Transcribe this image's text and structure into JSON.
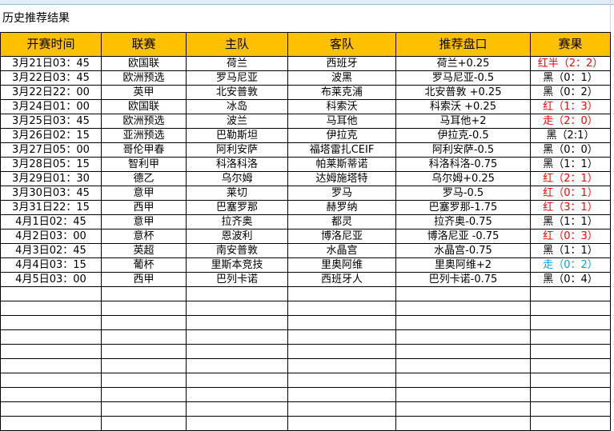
{
  "title": "历史推荐结果",
  "headers": [
    "开赛时间",
    "联赛",
    "主队",
    "客队",
    "推荐盘口",
    "赛果"
  ],
  "colors": {
    "header_bg": "#ffc000",
    "red": "#ff0000",
    "blue": "#00a0e9"
  },
  "rows": [
    {
      "time": "3月21日03：45",
      "league": "欧国联",
      "home": "荷兰",
      "away": "西班牙",
      "pick": "荷兰+0.25",
      "result": "红半（2：2）",
      "color": "red"
    },
    {
      "time": "3月22日03：45",
      "league": "欧洲预选",
      "home": "罗马尼亚",
      "away": "波黑",
      "pick": "罗马尼亚-0.5",
      "result": "黑（0：1）",
      "color": "black"
    },
    {
      "time": "3月22日22：00",
      "league": "英甲",
      "home": "北安普敦",
      "away": "布莱克浦",
      "pick": "北安普敦 +0.25",
      "result": "黑（0：2）",
      "color": "black"
    },
    {
      "time": "3月24日01：00",
      "league": "欧国联",
      "home": "冰岛",
      "away": "科索沃",
      "pick": "科索沃 +0.25",
      "result": "红（1：3）",
      "color": "red"
    },
    {
      "time": "3月25日03：45",
      "league": "欧洲预选",
      "home": "波兰",
      "away": "马耳他",
      "pick": "马耳他+2",
      "result": "走（2：0）",
      "color": "red"
    },
    {
      "time": "3月26日02：15",
      "league": "亚洲预选",
      "home": "巴勒斯坦",
      "away": "伊拉克",
      "pick": "伊拉克-0.5",
      "result": "黑（2:1）",
      "color": "black"
    },
    {
      "time": "3月27日05：00",
      "league": "哥伦甲春",
      "home": "阿利安萨",
      "away": "福塔雷扎CEIF",
      "pick": "阿利安萨-0.5",
      "result": "黑（0：0）",
      "color": "black"
    },
    {
      "time": "3月28日05：15",
      "league": "智利甲",
      "home": "科洛科洛",
      "away": "帕莱斯蒂诺",
      "pick": "科洛科洛-0.75",
      "result": "黑（1：1）",
      "color": "black"
    },
    {
      "time": "3月29日01：30",
      "league": "德乙",
      "home": "乌尔姆",
      "away": "达姆施塔特",
      "pick": "乌尔姆+0.25",
      "result": "红（2：1）",
      "color": "red"
    },
    {
      "time": "3月30日03：45",
      "league": "意甲",
      "home": "莱切",
      "away": "罗马",
      "pick": "罗马-0.5",
      "result": "红（0：1）",
      "color": "red"
    },
    {
      "time": "3月31日22：15",
      "league": "西甲",
      "home": "巴塞罗那",
      "away": "赫罗纳",
      "pick": "巴塞罗那-1.75",
      "result": "红（3：1）",
      "color": "red"
    },
    {
      "time": "4月1日02：45",
      "league": "意甲",
      "home": "拉齐奥",
      "away": "都灵",
      "pick": "拉齐奥-0.75",
      "result": "黑（1：1）",
      "color": "black"
    },
    {
      "time": "4月2日03：00",
      "league": "意杯",
      "home": "恩波利",
      "away": "博洛尼亚",
      "pick": "博洛尼亚 -0.75",
      "result": "红（0：3）",
      "color": "red"
    },
    {
      "time": "4月3日02：45",
      "league": "英超",
      "home": "南安普敦",
      "away": "水晶宫",
      "pick": "水晶宫-0.75",
      "result": "黑（1：1）",
      "color": "black"
    },
    {
      "time": "4月4日03：15",
      "league": "葡杯",
      "home": "里斯本竞技",
      "away": "里奥阿维",
      "pick": "里奥阿维+2",
      "result": "走（0：2）",
      "color": "blue"
    },
    {
      "time": "4月5日03：00",
      "league": "西甲",
      "home": "巴列卡诺",
      "away": "西班牙人",
      "pick": "巴列卡诺-0.75",
      "result": "黑（0：4）",
      "color": "black"
    }
  ]
}
